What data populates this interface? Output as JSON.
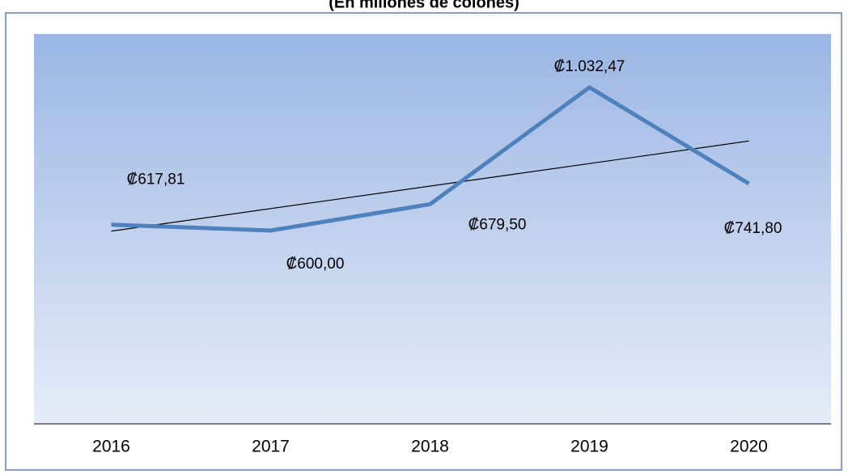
{
  "chart_data": {
    "type": "line",
    "title": "(En millones de colones)",
    "categories": [
      "2016",
      "2017",
      "2018",
      "2019",
      "2020"
    ],
    "series": [
      {
        "color": "#4f81bd",
        "values": [
          617.81,
          600.0,
          679.5,
          1032.47,
          741.8
        ],
        "value_labels": [
          "₡617,81",
          "₡600,00",
          "₡679,50",
          "₡1.032,47",
          "₡741,80"
        ]
      }
    ],
    "trendline": true
  }
}
